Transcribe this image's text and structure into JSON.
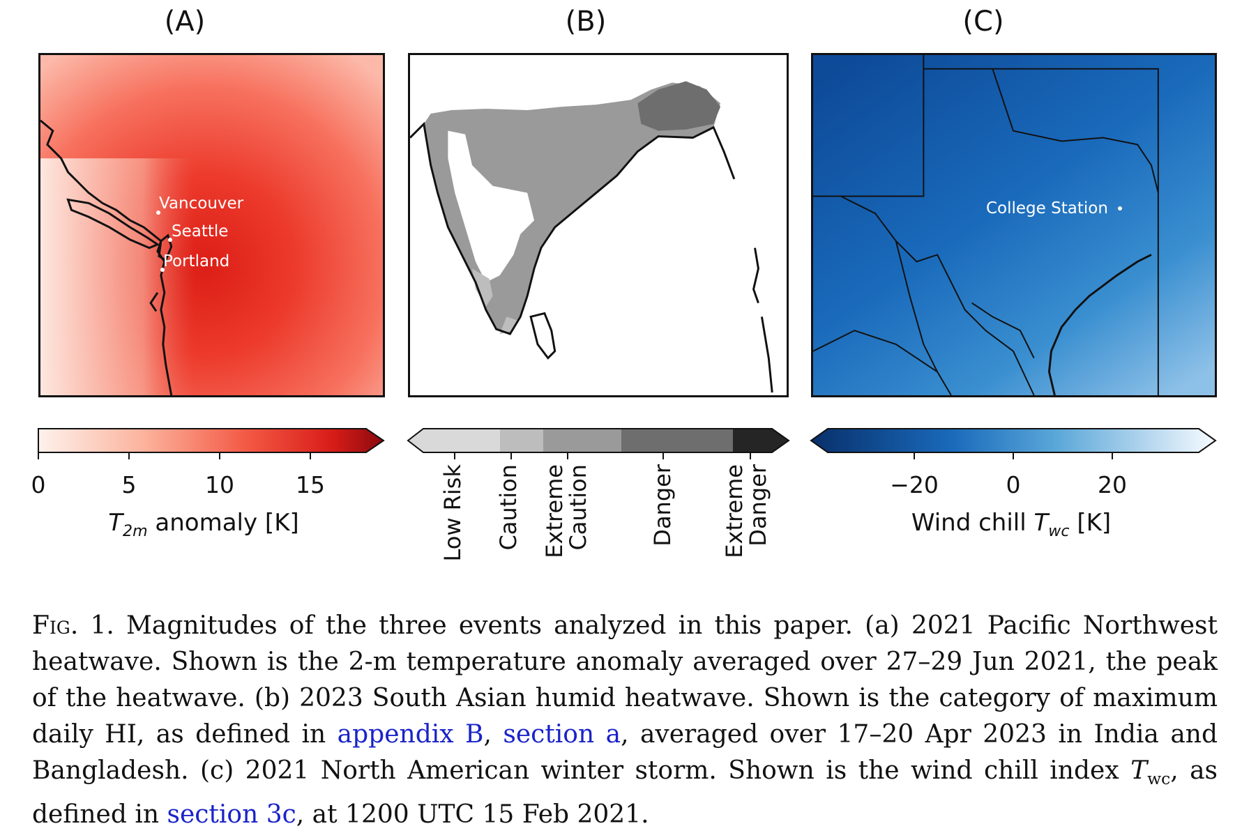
{
  "panels": [
    {
      "title": "(A)",
      "places": [
        "Vancouver",
        "Seattle",
        "Portland"
      ],
      "colorbar": {
        "ticks": [
          "0",
          "5",
          "10",
          "15"
        ],
        "label_var": "T",
        "label_sub": "2m",
        "label_rest": " anomaly [K]"
      }
    },
    {
      "title": "(B)",
      "categories": [
        "Low Risk",
        "Caution",
        "Extreme\nCaution",
        "Danger",
        "Extreme\nDanger"
      ]
    },
    {
      "title": "(C)",
      "places": [
        "College Station"
      ],
      "colorbar": {
        "ticks": [
          "−20",
          "0",
          "20"
        ],
        "label_pre": "Wind chill ",
        "label_var": "T",
        "label_sub": "wc",
        "label_rest": " [K]"
      }
    }
  ],
  "colors": {
    "heat_low": "#fdf1ec",
    "heat_high": "#e82b1f",
    "heat_max": "#8b0a0f",
    "gray_1": "#d9d9d9",
    "gray_2": "#bdbdbd",
    "gray_3": "#9a9a9a",
    "gray_4": "#6e6e6e",
    "gray_5": "#252525",
    "cold_low": "#08306b",
    "cold_mid": "#3a8fd0",
    "cold_high": "#f1f7fd",
    "link": "#1a23c8"
  },
  "caption": {
    "fig_label": "Fig. 1.",
    "part1": " Magnitudes of the three events analyzed in this paper. (a) 2021 Pacific Northwest heatwave. Shown is the 2-m temperature anomaly averaged over 27–29 Jun 2021, the peak of the heatwave. (b) 2023 South Asian humid heatwave. Shown is the category of maximum daily HI, as defined in ",
    "link1": "appendix B",
    "part2": ", ",
    "link2": "section a",
    "part3": ", averaged over 17–20 Apr 2023 in India and Bangladesh. (c) 2021 North American winter storm. Shown is the wind chill index ",
    "twc_var": "T",
    "twc_sub": "wc",
    "part4": ", as defined in ",
    "link3": "section 3c",
    "part5": ", at 1200 UTC 15 Feb 2021."
  }
}
